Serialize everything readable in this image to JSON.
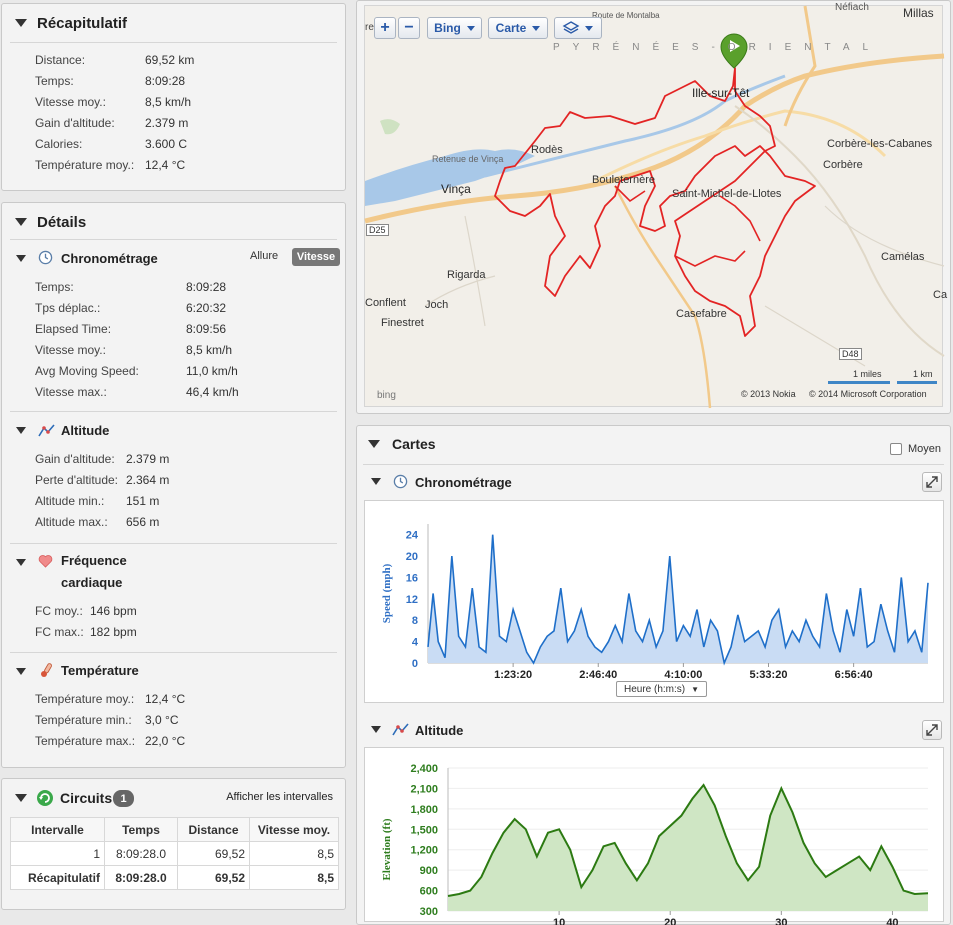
{
  "summary": {
    "title": "Récapitulatif",
    "rows": [
      {
        "label": "Distance:",
        "value": "69,52 km"
      },
      {
        "label": "Temps:",
        "value": "8:09:28"
      },
      {
        "label": "Vitesse moy.:",
        "value": "8,5 km/h"
      },
      {
        "label": "Gain d'altitude:",
        "value": "2.379 m"
      },
      {
        "label": "Calories:",
        "value": "3.600 C"
      },
      {
        "label": "Température moy.:",
        "value": "12,4 °C"
      }
    ]
  },
  "details": {
    "title": "Détails",
    "timing": {
      "title": "Chronométrage",
      "toggle_pace": "Allure",
      "toggle_speed": "Vitesse",
      "rows": [
        {
          "label": "Temps:",
          "value": "8:09:28"
        },
        {
          "label": "Tps déplac.:",
          "value": "6:20:32"
        },
        {
          "label": "Elapsed Time:",
          "value": "8:09:56"
        },
        {
          "label": "Vitesse moy.:",
          "value": "8,5 km/h"
        },
        {
          "label": "Avg Moving Speed:",
          "value": "11,0 km/h"
        },
        {
          "label": "Vitesse max.:",
          "value": "46,4 km/h"
        }
      ]
    },
    "altitude": {
      "title": "Altitude",
      "rows": [
        {
          "label": "Gain d'altitude:",
          "value": "2.379 m"
        },
        {
          "label": "Perte d'altitude:",
          "value": "2.364 m"
        },
        {
          "label": "Altitude min.:",
          "value": "151 m"
        },
        {
          "label": "Altitude max.:",
          "value": "656 m"
        }
      ]
    },
    "heart": {
      "title_line1": "Fréquence",
      "title_line2": "cardiaque",
      "rows": [
        {
          "label": "FC moy.:",
          "value": "146 bpm"
        },
        {
          "label": "FC max.:",
          "value": "182 bpm"
        }
      ]
    },
    "temperature": {
      "title": "Température",
      "rows": [
        {
          "label": "Température moy.:",
          "value": "12,4 °C"
        },
        {
          "label": "Température min.:",
          "value": "3,0 °C"
        },
        {
          "label": "Température max.:",
          "value": "22,0 °C"
        }
      ]
    }
  },
  "laps": {
    "title": "Circuits",
    "count": "1",
    "show_intervals": "Afficher les intervalles",
    "headers": [
      "Intervalle",
      "Temps",
      "Distance",
      "Vitesse moy."
    ],
    "rows": [
      [
        "1",
        "8:09:28.0",
        "69,52",
        "8,5"
      ],
      [
        "Récapitulatif",
        "8:09:28.0",
        "69,52",
        "8,5"
      ]
    ]
  },
  "map": {
    "zoom_in": "+",
    "zoom_out": "−",
    "provider": "Bing",
    "view": "Carte",
    "scale_miles": "1 miles",
    "scale_km": "1 km",
    "copyright1": "© 2013 Nokia",
    "copyright2": "© 2014 Microsoft Corporation",
    "bing": "bing",
    "labels": [
      "Ille-sur-Têt",
      "Rodès",
      "Vinça",
      "Bouleternère",
      "Saint-Michel-de-Llotes",
      "Corbère-les-Cabanes",
      "Corbère",
      "Rigarda",
      "Joch",
      "Conflent",
      "Finestret",
      "Casefabre",
      "Camélas",
      "Millas",
      "Néfiach",
      "Retenue de Vinça",
      "PYRÉNÉES-ORIENTAL",
      "Route de Montalba",
      "D25",
      "D48",
      "rench",
      "Ca"
    ]
  },
  "charts": {
    "title": "Cartes",
    "average_label": "Moyen",
    "speed_title": "Chronométrage",
    "elevation_title": "Altitude",
    "x_axis_select": "Heure (h:m:s)"
  },
  "chart_data": [
    {
      "type": "area",
      "ylabel": "Speed (mph)",
      "ylim": [
        0,
        26
      ],
      "yticks": [
        0,
        4,
        8,
        12,
        16,
        20,
        24
      ],
      "xticks": [
        "1:23:20",
        "2:46:40",
        "4:10:00",
        "5:33:20",
        "6:56:40"
      ],
      "xtick_seconds": [
        5000,
        10000,
        15000,
        20000,
        25000
      ],
      "xlim_seconds": [
        0,
        29368
      ],
      "series": [
        {
          "x": [
            0,
            300,
            600,
            1000,
            1400,
            1800,
            2200,
            2600,
            3000,
            3400,
            3800,
            4200,
            4600,
            5000,
            5400,
            5800,
            6200,
            6600,
            7000,
            7400,
            7800,
            8200,
            8600,
            9000,
            9400,
            9800,
            10200,
            10600,
            11000,
            11400,
            11800,
            12200,
            12600,
            13000,
            13400,
            13800,
            14200,
            14600,
            15000,
            15400,
            15800,
            16200,
            16600,
            17000,
            17400,
            17800,
            18200,
            18600,
            19000,
            19400,
            19800,
            20200,
            20600,
            21000,
            21400,
            21800,
            22200,
            22600,
            23000,
            23400,
            23800,
            24200,
            24600,
            25000,
            25400,
            25800,
            26200,
            26600,
            27000,
            27400,
            27800,
            28200,
            28600,
            29000,
            29368
          ],
          "values": [
            3,
            13,
            4,
            1,
            20,
            5,
            3,
            14,
            3,
            2,
            24,
            5,
            4,
            10,
            6,
            2,
            0,
            3,
            5,
            6,
            14,
            4,
            6,
            10,
            5,
            3,
            2,
            4,
            7,
            4,
            13,
            6,
            4,
            8,
            3,
            6,
            20,
            4,
            7,
            5,
            10,
            3,
            8,
            6,
            0,
            3,
            9,
            4,
            5,
            6,
            3,
            8,
            10,
            3,
            6,
            4,
            8,
            5,
            3,
            13,
            6,
            2,
            10,
            5,
            14,
            3,
            4,
            11,
            6,
            2,
            16,
            4,
            6,
            2,
            15
          ]
        }
      ]
    },
    {
      "type": "area",
      "ylabel": "Elevation (ft)",
      "ylim": [
        300,
        2400
      ],
      "yticks": [
        300,
        600,
        900,
        1200,
        1500,
        1800,
        2100,
        2400
      ],
      "xticks": [
        "10",
        "20",
        "30",
        "40"
      ],
      "xlim": [
        0,
        43.2
      ],
      "series": [
        {
          "x": [
            0,
            1,
            2,
            3,
            4,
            5,
            6,
            7,
            8,
            9,
            10,
            11,
            12,
            13,
            14,
            15,
            16,
            17,
            18,
            19,
            20,
            21,
            22,
            23,
            24,
            25,
            26,
            27,
            28,
            29,
            30,
            31,
            32,
            33,
            34,
            35,
            36,
            37,
            38,
            39,
            40,
            41,
            42,
            43.2
          ],
          "values": [
            520,
            550,
            600,
            800,
            1150,
            1450,
            1650,
            1500,
            1100,
            1450,
            1500,
            1200,
            650,
            900,
            1250,
            1300,
            1000,
            750,
            1000,
            1400,
            1550,
            1700,
            1950,
            2150,
            1850,
            1400,
            1000,
            750,
            950,
            1700,
            2100,
            1750,
            1300,
            1000,
            800,
            900,
            1000,
            1100,
            900,
            1250,
            950,
            600,
            550,
            560
          ]
        }
      ]
    }
  ]
}
